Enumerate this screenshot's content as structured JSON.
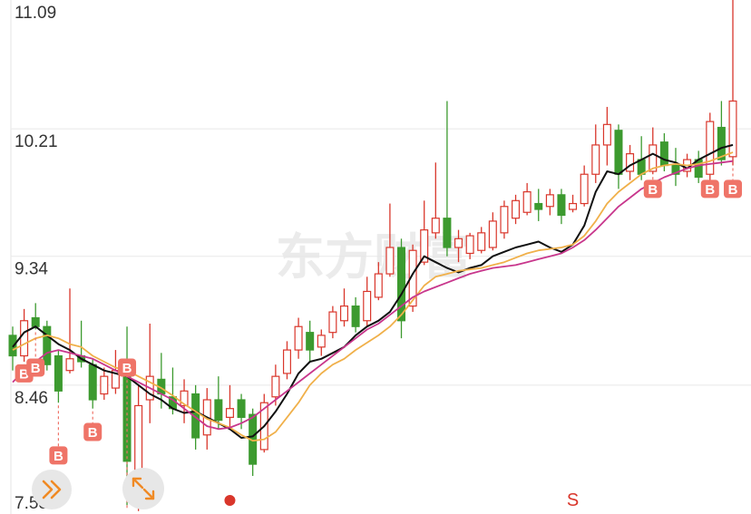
{
  "watermark": "东方财富",
  "controls": {
    "collapse_icon": "double-chevron-right-icon",
    "expand_icon": "expand-arrows-icon"
  },
  "chart_data": {
    "type": "candlestick",
    "y_ticks": [
      "11.09",
      "10.21",
      "9.34",
      "8.46",
      "7.58"
    ],
    "ylim": [
      7.58,
      11.09
    ],
    "grid": true,
    "colors": {
      "up": "#d9362b",
      "down": "#3c9a2f",
      "ma_short": "#111111",
      "ma_mid": "#f0b04a",
      "ma_long": "#c8368c",
      "signal_bg": "#ef7468",
      "sell_text": "#d9362b"
    },
    "moving_averages": [
      {
        "values": [
          8.72,
          8.82,
          8.86,
          8.8,
          8.74,
          8.7,
          8.64,
          8.6,
          8.56,
          8.54,
          8.52,
          8.46,
          8.4,
          8.36,
          8.3,
          8.27,
          8.28,
          8.24,
          8.2,
          8.16,
          8.1,
          8.11,
          8.18,
          8.28,
          8.4,
          8.54,
          8.62,
          8.64,
          8.68,
          8.72,
          8.8,
          8.86,
          8.9,
          8.96,
          9.08,
          9.22,
          9.34,
          9.3,
          9.26,
          9.23,
          9.26,
          9.28,
          9.34,
          9.37,
          9.4,
          9.42,
          9.44,
          9.4,
          9.37,
          9.42,
          9.55,
          9.78,
          9.92,
          9.9,
          9.96,
          10.0,
          10.04,
          10.0,
          9.98,
          9.94,
          10.0,
          10.04,
          10.08,
          10.1
        ]
      },
      {
        "values": [
          8.7,
          8.74,
          8.78,
          8.8,
          8.78,
          8.74,
          8.72,
          8.66,
          8.62,
          8.58,
          8.56,
          8.52,
          8.48,
          8.44,
          8.39,
          8.33,
          8.28,
          8.23,
          8.2,
          8.17,
          8.12,
          8.08,
          8.09,
          8.14,
          8.24,
          8.34,
          8.46,
          8.54,
          8.6,
          8.64,
          8.7,
          8.75,
          8.8,
          8.86,
          8.94,
          9.04,
          9.14,
          9.2,
          9.22,
          9.24,
          9.25,
          9.26,
          9.28,
          9.3,
          9.33,
          9.36,
          9.38,
          9.39,
          9.4,
          9.42,
          9.48,
          9.58,
          9.7,
          9.78,
          9.84,
          9.9,
          9.94,
          9.96,
          9.97,
          9.96,
          9.97,
          9.99,
          10.02,
          10.05
        ]
      },
      {
        "values": [
          8.48,
          8.56,
          8.62,
          8.68,
          8.7,
          8.68,
          8.66,
          8.64,
          8.6,
          8.56,
          8.52,
          8.48,
          8.44,
          8.4,
          8.36,
          8.3,
          8.24,
          8.18,
          8.16,
          8.17,
          8.2,
          8.24,
          8.3,
          8.36,
          8.42,
          8.48,
          8.54,
          8.6,
          8.66,
          8.72,
          8.78,
          8.84,
          8.88,
          8.94,
          9.0,
          9.06,
          9.1,
          9.13,
          9.16,
          9.19,
          9.22,
          9.24,
          9.26,
          9.27,
          9.28,
          9.3,
          9.32,
          9.34,
          9.36,
          9.4,
          9.45,
          9.52,
          9.6,
          9.68,
          9.74,
          9.8,
          9.84,
          9.88,
          9.91,
          9.94,
          9.96,
          9.97,
          9.98,
          9.99
        ]
      }
    ],
    "candles": [
      {
        "o": 8.8,
        "h": 8.86,
        "l": 8.56,
        "c": 8.66
      },
      {
        "o": 8.66,
        "h": 8.98,
        "l": 8.62,
        "c": 8.9
      },
      {
        "o": 8.92,
        "h": 9.02,
        "l": 8.84,
        "c": 8.86
      },
      {
        "o": 8.86,
        "h": 8.9,
        "l": 8.56,
        "c": 8.6
      },
      {
        "o": 8.66,
        "h": 8.7,
        "l": 8.34,
        "c": 8.42
      },
      {
        "o": 8.56,
        "h": 9.12,
        "l": 8.54,
        "c": 8.64
      },
      {
        "o": 8.66,
        "h": 8.9,
        "l": 8.58,
        "c": 8.62
      },
      {
        "o": 8.6,
        "h": 8.64,
        "l": 8.3,
        "c": 8.36
      },
      {
        "o": 8.4,
        "h": 8.58,
        "l": 8.36,
        "c": 8.52
      },
      {
        "o": 8.44,
        "h": 8.7,
        "l": 8.4,
        "c": 8.56
      },
      {
        "o": 8.58,
        "h": 8.86,
        "l": 7.64,
        "c": 7.94
      },
      {
        "o": 7.7,
        "h": 8.46,
        "l": 7.6,
        "c": 8.32
      },
      {
        "o": 8.36,
        "h": 8.88,
        "l": 8.2,
        "c": 8.52
      },
      {
        "o": 8.5,
        "h": 8.68,
        "l": 8.3,
        "c": 8.4
      },
      {
        "o": 8.38,
        "h": 8.58,
        "l": 8.26,
        "c": 8.3
      },
      {
        "o": 8.32,
        "h": 8.5,
        "l": 8.2,
        "c": 8.42
      },
      {
        "o": 8.4,
        "h": 8.46,
        "l": 8.02,
        "c": 8.1
      },
      {
        "o": 8.12,
        "h": 8.44,
        "l": 8.02,
        "c": 8.36
      },
      {
        "o": 8.36,
        "h": 8.52,
        "l": 8.16,
        "c": 8.22
      },
      {
        "o": 8.24,
        "h": 8.46,
        "l": 8.16,
        "c": 8.3
      },
      {
        "o": 8.36,
        "h": 8.4,
        "l": 8.16,
        "c": 8.24
      },
      {
        "o": 8.26,
        "h": 8.3,
        "l": 7.84,
        "c": 7.92
      },
      {
        "o": 8.02,
        "h": 8.4,
        "l": 8.0,
        "c": 8.34
      },
      {
        "o": 8.38,
        "h": 8.6,
        "l": 8.32,
        "c": 8.52
      },
      {
        "o": 8.54,
        "h": 8.76,
        "l": 8.5,
        "c": 8.7
      },
      {
        "o": 8.7,
        "h": 8.92,
        "l": 8.64,
        "c": 8.86
      },
      {
        "o": 8.82,
        "h": 8.9,
        "l": 8.62,
        "c": 8.7
      },
      {
        "o": 8.72,
        "h": 8.84,
        "l": 8.66,
        "c": 8.8
      },
      {
        "o": 8.82,
        "h": 9.0,
        "l": 8.78,
        "c": 8.96
      },
      {
        "o": 8.9,
        "h": 9.12,
        "l": 8.86,
        "c": 9.0
      },
      {
        "o": 9.0,
        "h": 9.06,
        "l": 8.82,
        "c": 8.86
      },
      {
        "o": 8.9,
        "h": 9.2,
        "l": 8.86,
        "c": 9.1
      },
      {
        "o": 9.06,
        "h": 9.3,
        "l": 9.04,
        "c": 9.22
      },
      {
        "o": 9.22,
        "h": 9.7,
        "l": 9.2,
        "c": 9.4
      },
      {
        "o": 9.4,
        "h": 9.46,
        "l": 8.78,
        "c": 8.9
      },
      {
        "o": 9.0,
        "h": 9.42,
        "l": 8.96,
        "c": 9.38
      },
      {
        "o": 9.3,
        "h": 9.72,
        "l": 9.28,
        "c": 9.52
      },
      {
        "o": 9.5,
        "h": 9.98,
        "l": 9.46,
        "c": 9.6
      },
      {
        "o": 9.6,
        "h": 10.4,
        "l": 9.34,
        "c": 9.4
      },
      {
        "o": 9.4,
        "h": 9.52,
        "l": 9.3,
        "c": 9.46
      },
      {
        "o": 9.36,
        "h": 9.5,
        "l": 9.32,
        "c": 9.48
      },
      {
        "o": 9.38,
        "h": 9.54,
        "l": 9.36,
        "c": 9.5
      },
      {
        "o": 9.4,
        "h": 9.64,
        "l": 9.38,
        "c": 9.58
      },
      {
        "o": 9.5,
        "h": 9.72,
        "l": 9.46,
        "c": 9.68
      },
      {
        "o": 9.6,
        "h": 9.76,
        "l": 9.56,
        "c": 9.72
      },
      {
        "o": 9.64,
        "h": 9.84,
        "l": 9.62,
        "c": 9.78
      },
      {
        "o": 9.7,
        "h": 9.8,
        "l": 9.58,
        "c": 9.66
      },
      {
        "o": 9.68,
        "h": 9.8,
        "l": 9.62,
        "c": 9.76
      },
      {
        "o": 9.76,
        "h": 9.8,
        "l": 9.56,
        "c": 9.62
      },
      {
        "o": 9.66,
        "h": 9.76,
        "l": 9.64,
        "c": 9.7
      },
      {
        "o": 9.7,
        "h": 9.96,
        "l": 9.68,
        "c": 9.9
      },
      {
        "o": 9.9,
        "h": 10.24,
        "l": 9.84,
        "c": 10.1
      },
      {
        "o": 10.1,
        "h": 10.36,
        "l": 9.96,
        "c": 10.24
      },
      {
        "o": 10.2,
        "h": 10.24,
        "l": 9.8,
        "c": 9.9
      },
      {
        "o": 9.92,
        "h": 10.1,
        "l": 9.86,
        "c": 10.04
      },
      {
        "o": 10.0,
        "h": 10.16,
        "l": 9.86,
        "c": 9.9
      },
      {
        "o": 9.92,
        "h": 10.22,
        "l": 9.9,
        "c": 10.1
      },
      {
        "o": 10.12,
        "h": 10.18,
        "l": 9.92,
        "c": 9.96
      },
      {
        "o": 9.96,
        "h": 10.08,
        "l": 9.82,
        "c": 9.9
      },
      {
        "o": 9.92,
        "h": 10.04,
        "l": 9.88,
        "c": 10.0
      },
      {
        "o": 10.0,
        "h": 10.06,
        "l": 9.84,
        "c": 9.88
      },
      {
        "o": 9.9,
        "h": 10.32,
        "l": 9.86,
        "c": 10.26
      },
      {
        "o": 10.22,
        "h": 10.4,
        "l": 9.96,
        "c": 10.0
      },
      {
        "o": 10.02,
        "h": 11.09,
        "l": 9.96,
        "c": 10.4
      }
    ],
    "buy_signals": [
      {
        "index": 1,
        "price": 8.54,
        "label": "B"
      },
      {
        "index": 2,
        "price": 8.58,
        "label": "B"
      },
      {
        "index": 4,
        "price": 7.98,
        "label": "B"
      },
      {
        "index": 7,
        "price": 8.14,
        "label": "B"
      },
      {
        "index": 10,
        "price": 8.58,
        "label": "B"
      },
      {
        "index": 56,
        "price": 9.8,
        "label": "B"
      },
      {
        "index": 61,
        "price": 9.8,
        "label": "B"
      },
      {
        "index": 63,
        "price": 9.8,
        "label": "B"
      }
    ],
    "sell_signals": [
      {
        "index": 49,
        "label": "S"
      }
    ],
    "markers": [
      {
        "index": 19,
        "type": "dot"
      }
    ]
  }
}
